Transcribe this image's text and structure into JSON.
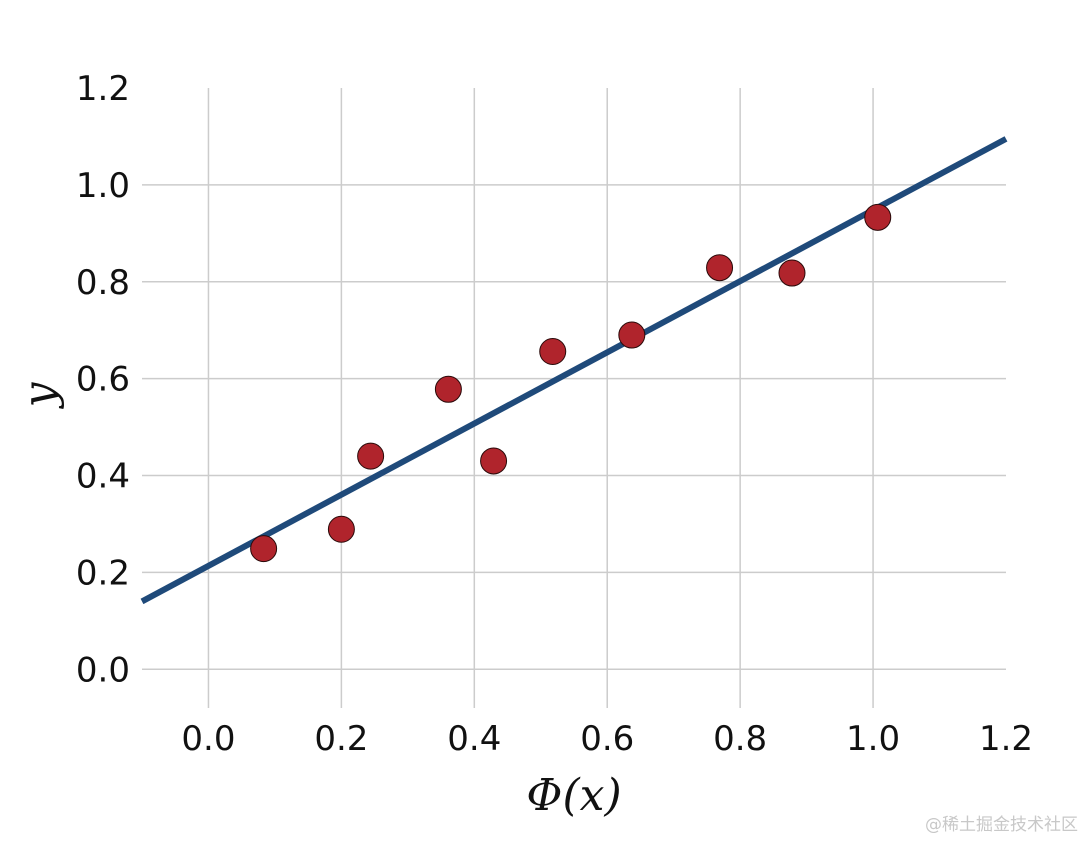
{
  "chart_data": {
    "type": "scatter",
    "xlabel": "Φ(x)",
    "ylabel": "y",
    "xlim": [
      -0.1,
      1.2
    ],
    "ylim": [
      -0.08,
      1.2
    ],
    "xticks": [
      "0.0",
      "0.2",
      "0.4",
      "0.6",
      "0.8",
      "1.0",
      "1.2"
    ],
    "yticks": [
      "0.0",
      "0.2",
      "0.4",
      "0.6",
      "0.8",
      "1.0",
      "1.2"
    ],
    "grid": true,
    "colors": {
      "points": "#b0242c",
      "fit_line": "#1f4a7a",
      "grid": "#cccccc"
    },
    "series": [
      {
        "type": "scatter",
        "x": [
          0.083,
          0.2,
          0.244,
          0.361,
          0.429,
          0.518,
          0.637,
          0.769,
          0.878,
          1.007
        ],
        "y": [
          0.249,
          0.289,
          0.44,
          0.578,
          0.43,
          0.656,
          0.69,
          0.829,
          0.818,
          0.933
        ]
      },
      {
        "type": "line",
        "x": [
          -0.1,
          1.2
        ],
        "y": [
          0.14,
          1.095
        ]
      }
    ]
  },
  "watermark": "@稀土掘金技术社区"
}
